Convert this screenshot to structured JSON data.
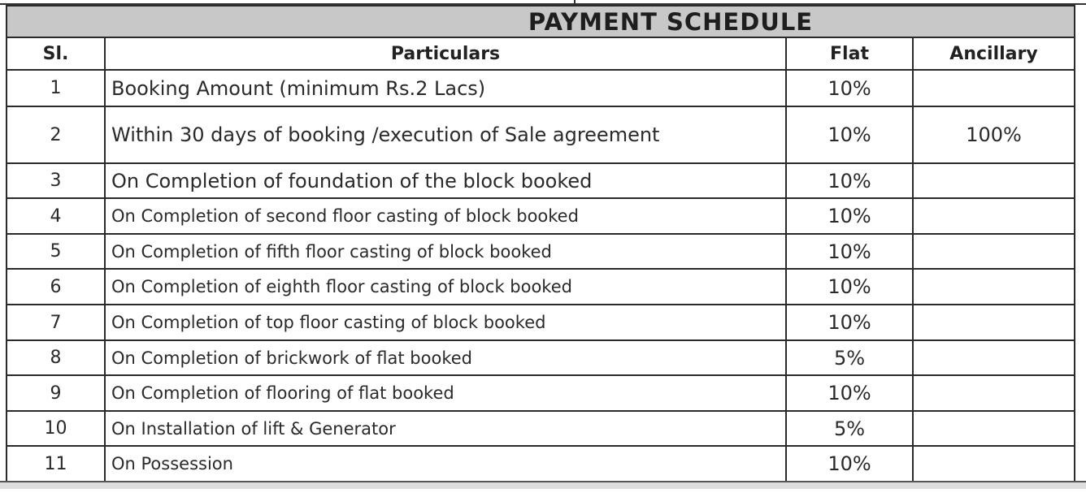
{
  "title": "PAYMENT SCHEDULE",
  "headers": {
    "sl": "Sl.",
    "particulars": "Particulars",
    "flat": "Flat",
    "ancillary": "Ancillary"
  },
  "rows": [
    {
      "sl": "1",
      "particulars": "Booking Amount (minimum Rs.2 Lacs)",
      "flat": "10%",
      "ancillary": ""
    },
    {
      "sl": "2",
      "particulars": "Within 30 days of booking /execution of Sale agreement",
      "flat": "10%",
      "ancillary": "100%"
    },
    {
      "sl": "3",
      "particulars": "On Completion of foundation of the block booked",
      "flat": "10%",
      "ancillary": ""
    },
    {
      "sl": "4",
      "particulars": "On Completion of second floor casting of block booked",
      "flat": "10%",
      "ancillary": ""
    },
    {
      "sl": "5",
      "particulars": "On Completion of fifth floor casting of block booked",
      "flat": "10%",
      "ancillary": ""
    },
    {
      "sl": "6",
      "particulars": "On Completion of eighth floor casting of block booked",
      "flat": "10%",
      "ancillary": ""
    },
    {
      "sl": "7",
      "particulars": "On Completion of top floor casting of block booked",
      "flat": "10%",
      "ancillary": ""
    },
    {
      "sl": "8",
      "particulars": "On Completion of brickwork of flat booked",
      "flat": "5%",
      "ancillary": ""
    },
    {
      "sl": "9",
      "particulars": "On Completion of flooring of flat booked",
      "flat": "10%",
      "ancillary": ""
    },
    {
      "sl": "10",
      "particulars": "On Installation of lift & Generator",
      "flat": "5%",
      "ancillary": ""
    },
    {
      "sl": "11",
      "particulars": "On Possession",
      "flat": "10%",
      "ancillary": ""
    }
  ]
}
